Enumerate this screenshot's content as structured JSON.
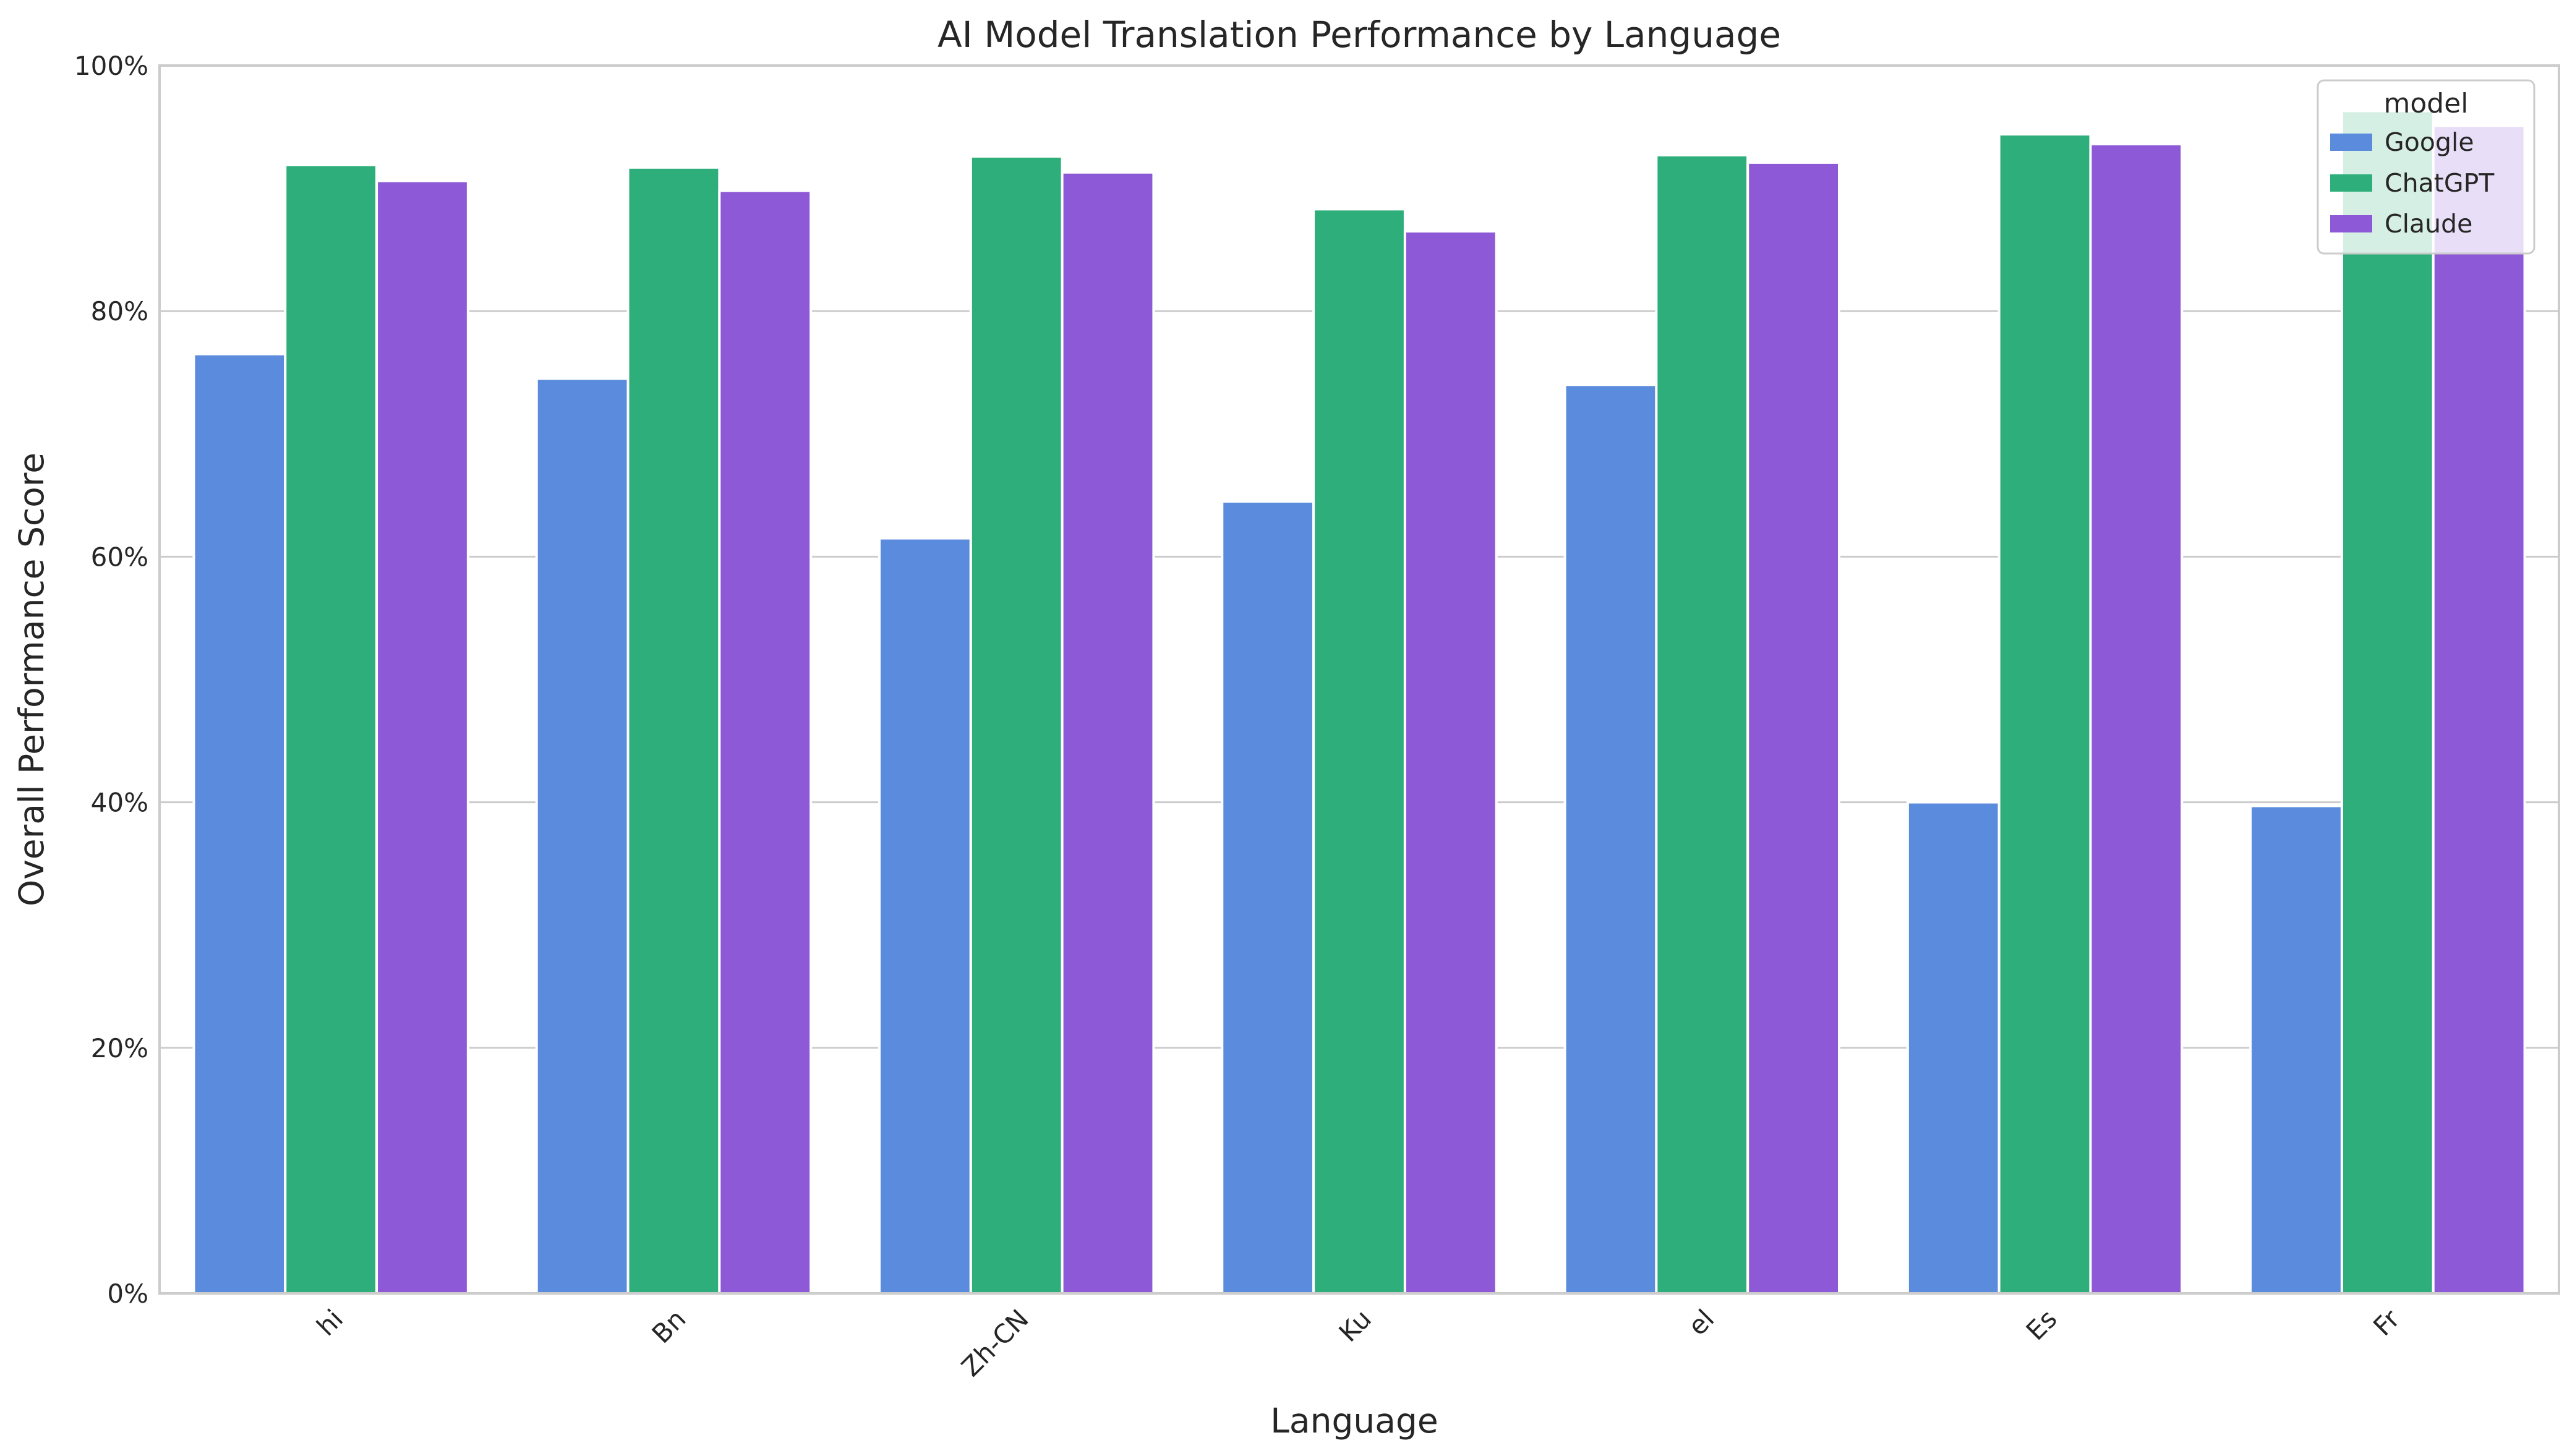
{
  "chart_data": {
    "type": "bar",
    "title": "AI Model Translation Performance by Language",
    "xlabel": "Language",
    "ylabel": "Overall Performance Score",
    "categories": [
      "hi",
      "Bn",
      "Zh-CN",
      "Ku",
      "el",
      "Es",
      "Fr"
    ],
    "series": [
      {
        "name": "Google",
        "color": "#5a8bdd",
        "values": [
          76.5,
          74.5,
          61.5,
          64.5,
          74.0,
          40.0,
          39.7
        ]
      },
      {
        "name": "ChatGPT",
        "color": "#2eae7a",
        "values": [
          91.9,
          91.7,
          92.6,
          88.3,
          92.7,
          94.4,
          96.3
        ]
      },
      {
        "name": "Claude",
        "color": "#8e59d6",
        "values": [
          90.6,
          89.8,
          91.3,
          86.5,
          92.1,
          93.6,
          95.1
        ]
      }
    ],
    "ylim": [
      0,
      100
    ],
    "yticks": [
      0,
      20,
      40,
      60,
      80,
      100
    ],
    "ytick_labels": [
      "0%",
      "20%",
      "40%",
      "60%",
      "80%",
      "100%"
    ],
    "grid": "horizontal",
    "legend": {
      "title": "model",
      "placement": "top-right"
    }
  }
}
